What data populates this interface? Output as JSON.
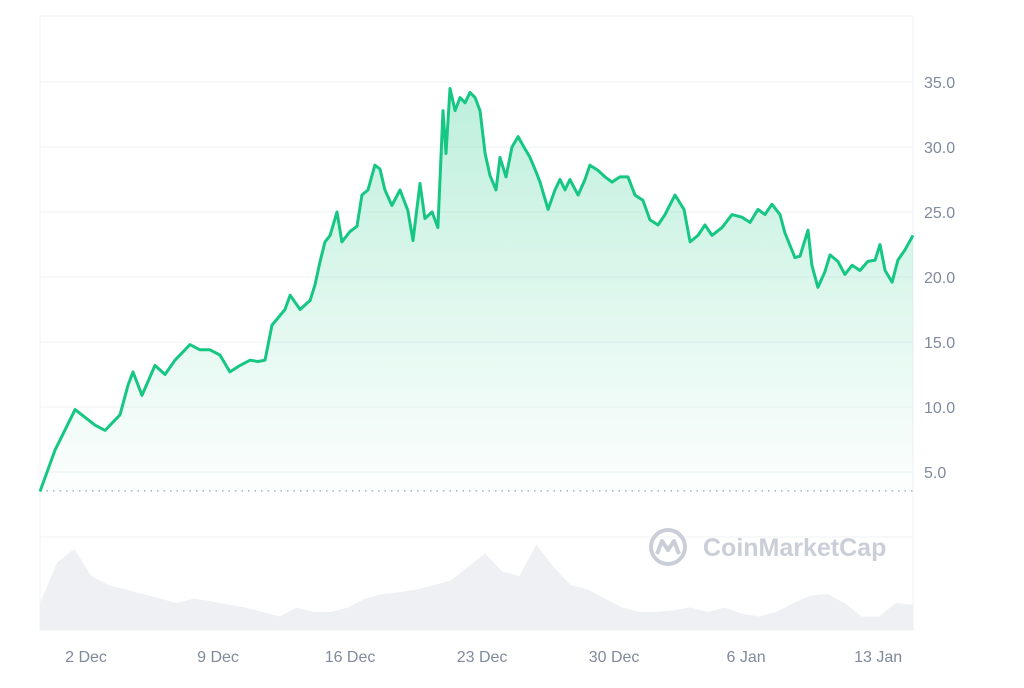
{
  "chart_data": {
    "type": "area",
    "title": "",
    "xlabel": "",
    "ylabel": "",
    "x_unit": "days since 2 Dec",
    "xlim": [
      -2.44,
      43.85
    ],
    "ylim": [
      0,
      40
    ],
    "grid": true,
    "baseline_value": 3.55,
    "y_ticks": [
      5,
      10,
      15,
      20,
      25,
      30,
      35
    ],
    "y_tick_labels": [
      "5.0",
      "10.0",
      "15.0",
      "20.0",
      "25.0",
      "30.0",
      "35.0"
    ],
    "x_ticks": [
      0,
      7,
      14,
      21,
      28,
      35,
      42
    ],
    "x_tick_labels": [
      "2 Dec",
      "9 Dec",
      "16 Dec",
      "23 Dec",
      "30 Dec",
      "6 Jan",
      "13 Jan"
    ],
    "colors": {
      "line": "#16c784",
      "volume": "#eef0f4",
      "grid": "#eff2f5",
      "baseline": "#a6b0c3"
    },
    "series": [
      {
        "name": "price",
        "x": [
          -2.44,
          -1.64,
          -0.58,
          0.48,
          1.01,
          1.8,
          2.23,
          2.49,
          2.97,
          3.66,
          4.19,
          4.72,
          5.25,
          5.51,
          6.04,
          6.57,
          7.1,
          7.63,
          8.17,
          8.7,
          9.12,
          9.49,
          9.86,
          10.55,
          10.82,
          11.35,
          11.88,
          12.14,
          12.41,
          12.67,
          12.94,
          13.31,
          13.57,
          14.0,
          14.37,
          14.63,
          14.95,
          15.32,
          15.59,
          15.85,
          16.22,
          16.65,
          17.07,
          17.34,
          17.71,
          17.97,
          18.35,
          18.66,
          18.93,
          19.09,
          19.3,
          19.57,
          19.83,
          20.1,
          20.36,
          20.63,
          20.89,
          21.16,
          21.42,
          21.74,
          21.95,
          22.27,
          22.59,
          22.91,
          23.22,
          23.54,
          23.86,
          24.07,
          24.5,
          24.87,
          25.13,
          25.4,
          25.66,
          26.09,
          26.46,
          26.72,
          27.15,
          27.52,
          27.89,
          28.31,
          28.74,
          29.11,
          29.53,
          29.9,
          30.33,
          30.7,
          31.23,
          31.71,
          32.03,
          32.45,
          32.82,
          33.19,
          33.72,
          34.25,
          34.78,
          35.21,
          35.63,
          36.0,
          36.37,
          36.8,
          37.06,
          37.59,
          37.86,
          38.28,
          38.49,
          38.81,
          39.18,
          39.45,
          39.87,
          40.24,
          40.62,
          41.04,
          41.46,
          41.84,
          42.1,
          42.37,
          42.74,
          43.05,
          43.43,
          43.85
        ],
        "values": [
          3.5,
          6.7,
          9.8,
          8.6,
          8.2,
          9.4,
          11.7,
          12.7,
          10.9,
          13.2,
          12.5,
          13.6,
          14.4,
          14.8,
          14.4,
          14.4,
          14.0,
          12.7,
          13.2,
          13.6,
          13.5,
          13.6,
          16.3,
          17.5,
          18.6,
          17.5,
          18.2,
          19.4,
          21.2,
          22.7,
          23.2,
          25.0,
          22.7,
          23.5,
          23.9,
          26.3,
          26.7,
          28.6,
          28.3,
          26.7,
          25.5,
          26.7,
          25.1,
          22.8,
          27.2,
          24.5,
          25.0,
          23.8,
          32.8,
          29.5,
          34.5,
          32.8,
          33.8,
          33.4,
          34.2,
          33.8,
          32.8,
          29.5,
          27.8,
          26.7,
          29.2,
          27.7,
          30.0,
          30.8,
          30.0,
          29.2,
          28.1,
          27.3,
          25.2,
          26.7,
          27.5,
          26.7,
          27.5,
          26.3,
          27.5,
          28.6,
          28.2,
          27.7,
          27.3,
          27.7,
          27.7,
          26.3,
          25.9,
          24.4,
          24.0,
          24.8,
          26.3,
          25.2,
          22.7,
          23.2,
          24.0,
          23.2,
          23.8,
          24.8,
          24.6,
          24.2,
          25.2,
          24.8,
          25.6,
          24.8,
          23.4,
          21.5,
          21.6,
          23.6,
          20.9,
          19.2,
          20.4,
          21.7,
          21.2,
          20.2,
          20.9,
          20.5,
          21.2,
          21.3,
          22.5,
          20.5,
          19.6,
          21.3,
          22.1,
          23.2
        ]
      }
    ],
    "volume_relative": [
      0.3,
      0.75,
      0.9,
      0.6,
      0.5,
      0.45,
      0.4,
      0.35,
      0.3,
      0.35,
      0.32,
      0.28,
      0.25,
      0.2,
      0.15,
      0.25,
      0.2,
      0.2,
      0.25,
      0.35,
      0.4,
      0.42,
      0.45,
      0.5,
      0.55,
      0.7,
      0.85,
      0.65,
      0.6,
      0.95,
      0.7,
      0.5,
      0.45,
      0.35,
      0.25,
      0.2,
      0.2,
      0.22,
      0.25,
      0.2,
      0.25,
      0.18,
      0.15,
      0.2,
      0.3,
      0.38,
      0.4,
      0.3,
      0.15,
      0.15,
      0.3,
      0.28
    ]
  },
  "watermark": "CoinMarketCap"
}
